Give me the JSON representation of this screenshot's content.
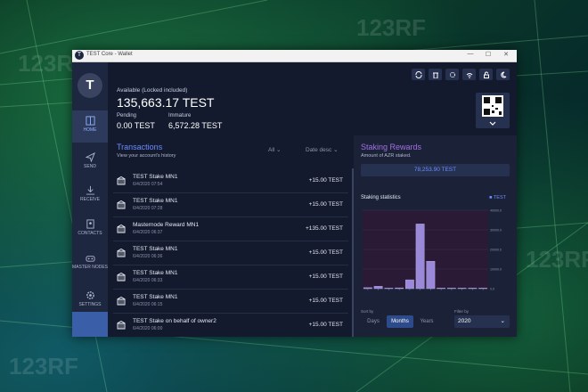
{
  "window": {
    "title": "TEST Core - Wallet",
    "minimize": "—",
    "maximize": "☐",
    "close": "✕"
  },
  "sidebar": {
    "avatar_letter": "T",
    "items": [
      {
        "label": "HOME",
        "icon": "home-icon"
      },
      {
        "label": "SEND",
        "icon": "send-icon"
      },
      {
        "label": "RECEIVE",
        "icon": "receive-icon"
      },
      {
        "label": "CONTACTS",
        "icon": "contacts-icon"
      },
      {
        "label": "MASTER NODES",
        "icon": "masternodes-icon"
      },
      {
        "label": "SETTINGS",
        "icon": "settings-icon"
      }
    ]
  },
  "header": {
    "available_label": "Available (Locked included)",
    "available_value": "135,663.17 TEST",
    "pending_label": "Pending",
    "pending_value": "0.00 TEST",
    "immature_label": "Immature",
    "immature_value": "6,572.28 TEST",
    "icons": [
      "sync-icon",
      "trash-icon",
      "gear-icon",
      "wifi-icon",
      "lock-icon",
      "moon-icon"
    ]
  },
  "transactions": {
    "title": "Transactions",
    "subtitle": "View your account's history",
    "filter": "All",
    "sort": "Date desc",
    "rows": [
      {
        "name": "TEST Stake MN1",
        "date": "6/4/2020 07:54",
        "amount": "+15.00 TEST"
      },
      {
        "name": "TEST Stake MN1",
        "date": "6/4/2020 07:28",
        "amount": "+15.00 TEST"
      },
      {
        "name": "Masternode Reward MN1",
        "date": "6/4/2020 06:37",
        "amount": "+135.00 TEST"
      },
      {
        "name": "TEST Stake MN1",
        "date": "6/4/2020 06:36",
        "amount": "+15.00 TEST"
      },
      {
        "name": "TEST Stake MN1",
        "date": "6/4/2020 06:33",
        "amount": "+15.00 TEST"
      },
      {
        "name": "TEST Stake MN1",
        "date": "6/4/2020 06:15",
        "amount": "+15.00 TEST"
      },
      {
        "name": "TEST Stake on behalf of owner2",
        "date": "6/4/2020 06:00",
        "amount": "+15.00 TEST"
      }
    ]
  },
  "staking": {
    "title": "Staking Rewards",
    "subtitle": "Amount of AZR staked.",
    "value": "78,253.90 TEST",
    "stats_label": "Staking statistics",
    "legend": "TEST",
    "sort_label": "Sort by",
    "filter_label": "Filter by",
    "tabs": [
      "Days",
      "Months",
      "Years"
    ],
    "active_tab": "Months",
    "year": "2020"
  },
  "chart_data": {
    "type": "bar",
    "series": [
      {
        "name": "TEST",
        "values": [
          500,
          1200,
          0,
          400,
          4500,
          33000,
          14000,
          0,
          0,
          0,
          0,
          0
        ]
      }
    ],
    "categories": [
      "1",
      "2",
      "3",
      "4",
      "5",
      "6",
      "7",
      "8",
      "9",
      "10",
      "11",
      "12"
    ],
    "ylim": [
      0,
      40000
    ],
    "yticks": [
      "40000.0",
      "30000.0",
      "20000.0",
      "10000.0",
      "0.0"
    ]
  },
  "colors": {
    "accent": "#6a8cff",
    "purple": "#a070e0",
    "bar": "#9a88d8",
    "sidebar": "#1e2740"
  }
}
